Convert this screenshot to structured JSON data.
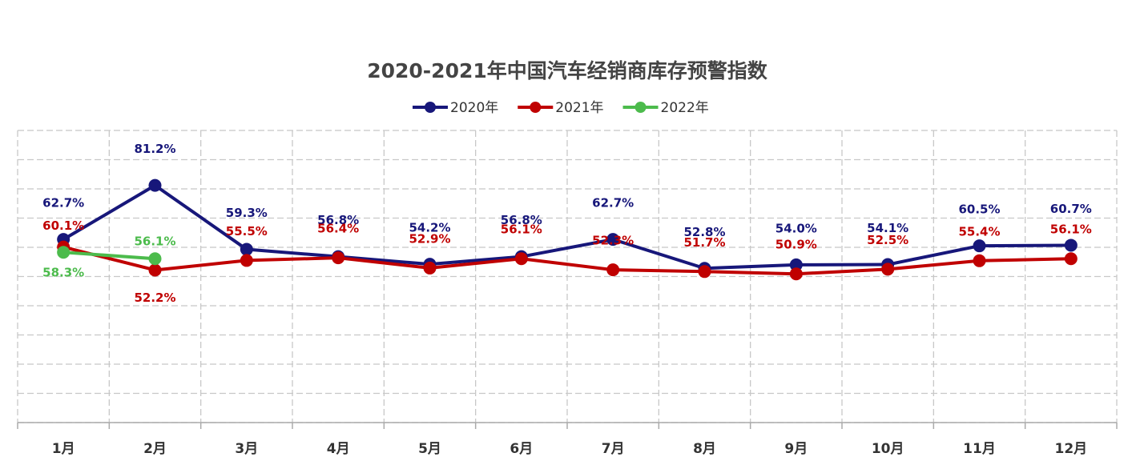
{
  "chart_data": {
    "type": "line",
    "title": "2020-2021年中国汽车经销商库存预警指数",
    "categories": [
      "1月",
      "2月",
      "3月",
      "4月",
      "5月",
      "6月",
      "7月",
      "8月",
      "9月",
      "10月",
      "11月",
      "12月"
    ],
    "series": [
      {
        "name": "2020年",
        "color": "#17177a",
        "values": [
          62.7,
          81.2,
          59.3,
          56.8,
          54.2,
          56.8,
          62.7,
          52.8,
          54.0,
          54.1,
          60.5,
          60.7
        ],
        "value_labels": [
          "62.7%",
          "81.2%",
          "59.3%",
          "56.8%",
          "54.2%",
          "56.8%",
          "62.7%",
          "52.8%",
          "54.0%",
          "54.1%",
          "60.5%",
          "60.7%"
        ]
      },
      {
        "name": "2021年",
        "color": "#c00000",
        "values": [
          60.1,
          52.2,
          55.5,
          56.4,
          52.9,
          56.1,
          52.3,
          51.7,
          50.9,
          52.5,
          55.4,
          56.1
        ],
        "value_labels": [
          "60.1%",
          "52.2%",
          "55.5%",
          "56.4%",
          "52.9%",
          "56.1%",
          "52.3%",
          "51.7%",
          "50.9%",
          "52.5%",
          "55.4%",
          "56.1%"
        ]
      },
      {
        "name": "2022年",
        "color": "#4cbb4c",
        "values": [
          58.3,
          56.1,
          null,
          null,
          null,
          null,
          null,
          null,
          null,
          null,
          null,
          null
        ],
        "value_labels": [
          "58.3%",
          "56.1%",
          null,
          null,
          null,
          null,
          null,
          null,
          null,
          null,
          null,
          null
        ]
      }
    ],
    "ylim": [
      0,
      100
    ],
    "yticks": [
      0,
      10,
      20,
      30,
      40,
      50,
      60,
      70,
      80,
      90,
      100
    ],
    "grid": true
  }
}
